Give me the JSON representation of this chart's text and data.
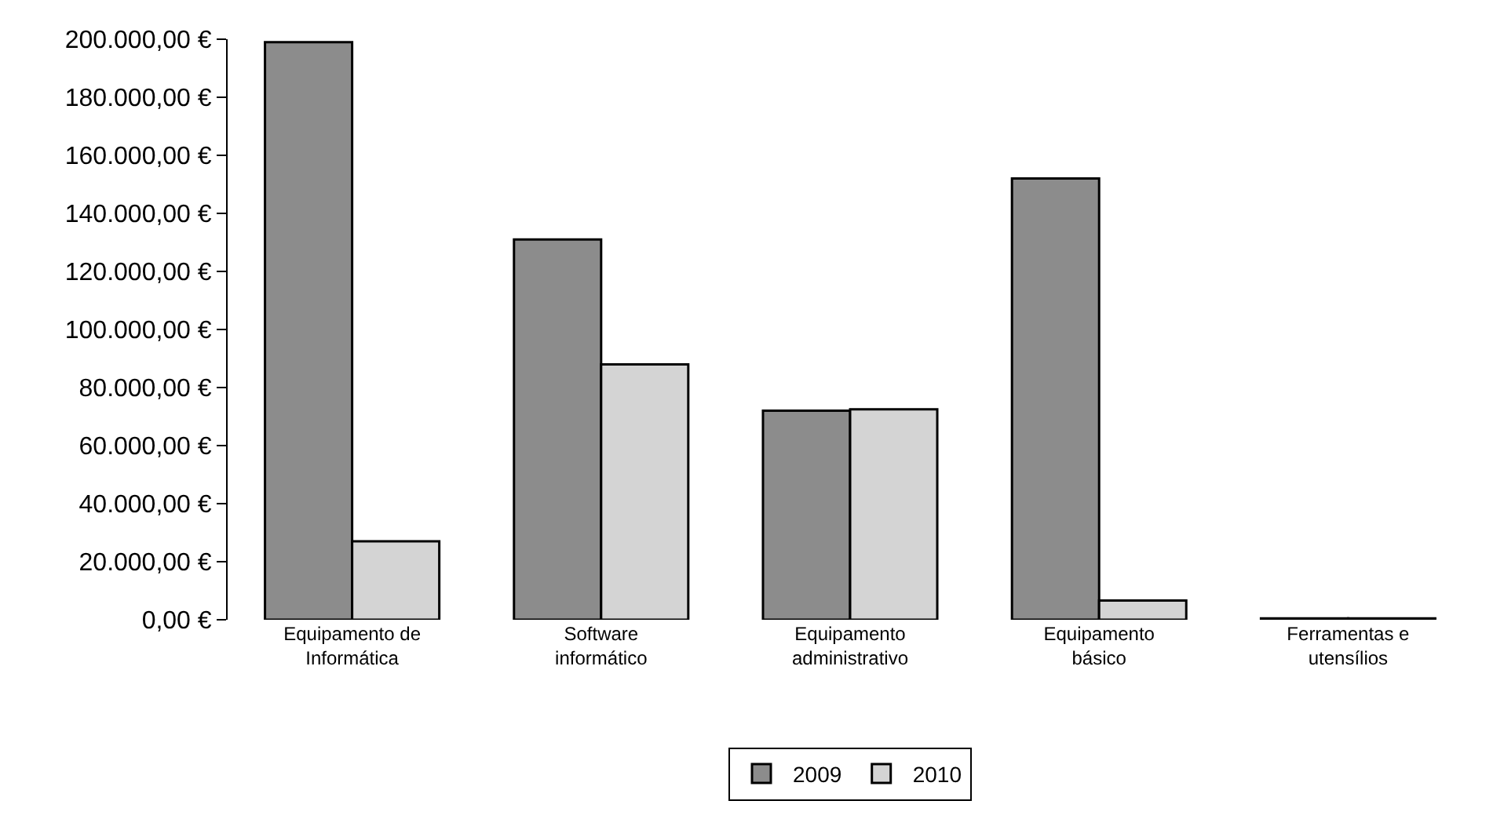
{
  "chart_data": {
    "type": "bar",
    "categories": [
      "Equipamento de Informática",
      "Software informático",
      "Equipamento administrativo",
      "Equipamento básico",
      "Ferramentas e utensílios"
    ],
    "series": [
      {
        "name": "2009",
        "color": "#8c8c8c",
        "values": [
          199000,
          131000,
          72000,
          152000,
          500
        ]
      },
      {
        "name": "2010",
        "color": "#d4d4d4",
        "values": [
          27000,
          88000,
          72500,
          6600,
          500
        ]
      }
    ],
    "ylim": [
      0,
      200000
    ],
    "yticks": [
      {
        "value": 0,
        "label": "0,00 €"
      },
      {
        "value": 20000,
        "label": "20.000,00 €"
      },
      {
        "value": 40000,
        "label": "40.000,00 €"
      },
      {
        "value": 60000,
        "label": "60.000,00 €"
      },
      {
        "value": 80000,
        "label": "80.000,00 €"
      },
      {
        "value": 100000,
        "label": "100.000,00 €"
      },
      {
        "value": 120000,
        "label": "120.000,00 €"
      },
      {
        "value": 140000,
        "label": "140.000,00 €"
      },
      {
        "value": 160000,
        "label": "160.000,00 €"
      },
      {
        "value": 180000,
        "label": "180.000,00 €"
      },
      {
        "value": 200000,
        "label": "200.000,00 €"
      }
    ],
    "grid": false,
    "legend": "bottom"
  }
}
